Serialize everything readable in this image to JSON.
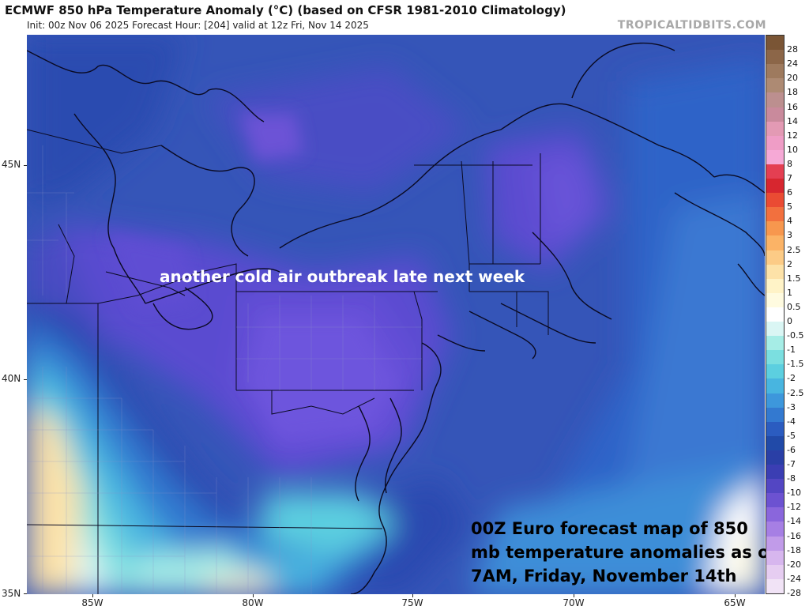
{
  "header": {
    "title": "ECMWF 850 hPa Temperature Anomaly (°C) (based on CFSR 1981-2010 Climatology)",
    "subtitle": "Init: 00z Nov 06 2025    Forecast Hour: [204]    valid at 12z Fri, Nov 14 2025",
    "credit": "TROPICALTIDBITS.COM"
  },
  "axes": {
    "latitude_labels": [
      "45N",
      "40N",
      "35N"
    ],
    "longitude_labels": [
      "85W",
      "80W",
      "75W",
      "70W",
      "65W"
    ]
  },
  "annotations": {
    "headline": "another cold air outbreak late next week",
    "caption_lines": [
      "00Z Euro forecast map of 850",
      "mb temperature anomalies as of",
      "7AM, Friday, November 14th"
    ]
  },
  "legend": {
    "labels": [
      "28",
      "24",
      "20",
      "18",
      "16",
      "14",
      "12",
      "10",
      "8",
      "7",
      "6",
      "5",
      "4",
      "3",
      "2.5",
      "2",
      "1.5",
      "1",
      "0.5",
      "0",
      "-0.5",
      "-1",
      "-1.5",
      "-2",
      "-2.5",
      "-3",
      "-4",
      "-5",
      "-6",
      "-7",
      "-8",
      "-10",
      "-12",
      "-14",
      "-16",
      "-18",
      "-20",
      "-24",
      "-28"
    ],
    "colors": [
      "#7a5535",
      "#8c6648",
      "#9e7a5e",
      "#ad8a73",
      "#bc8f8f",
      "#c98a9c",
      "#e39ab4",
      "#ef9dc6",
      "#f6a9d6",
      "#e43f52",
      "#d7262f",
      "#ea4b33",
      "#f2703e",
      "#f7974e",
      "#fbb366",
      "#fccb86",
      "#fde2a8",
      "#fff3c7",
      "#fffbe0",
      "#ffffff",
      "#daf6f4",
      "#a6ede6",
      "#7bdfe0",
      "#5ccfe0",
      "#48b5e0",
      "#3d97dc",
      "#3379d0",
      "#2b5cc0",
      "#214aa8",
      "#2a3fa6",
      "#3b3eb3",
      "#5346c3",
      "#6c52d1",
      "#8a66dc",
      "#a67fe4",
      "#c19be9",
      "#d7b6ee",
      "#e6cdf1",
      "#f1e3f6"
    ]
  }
}
